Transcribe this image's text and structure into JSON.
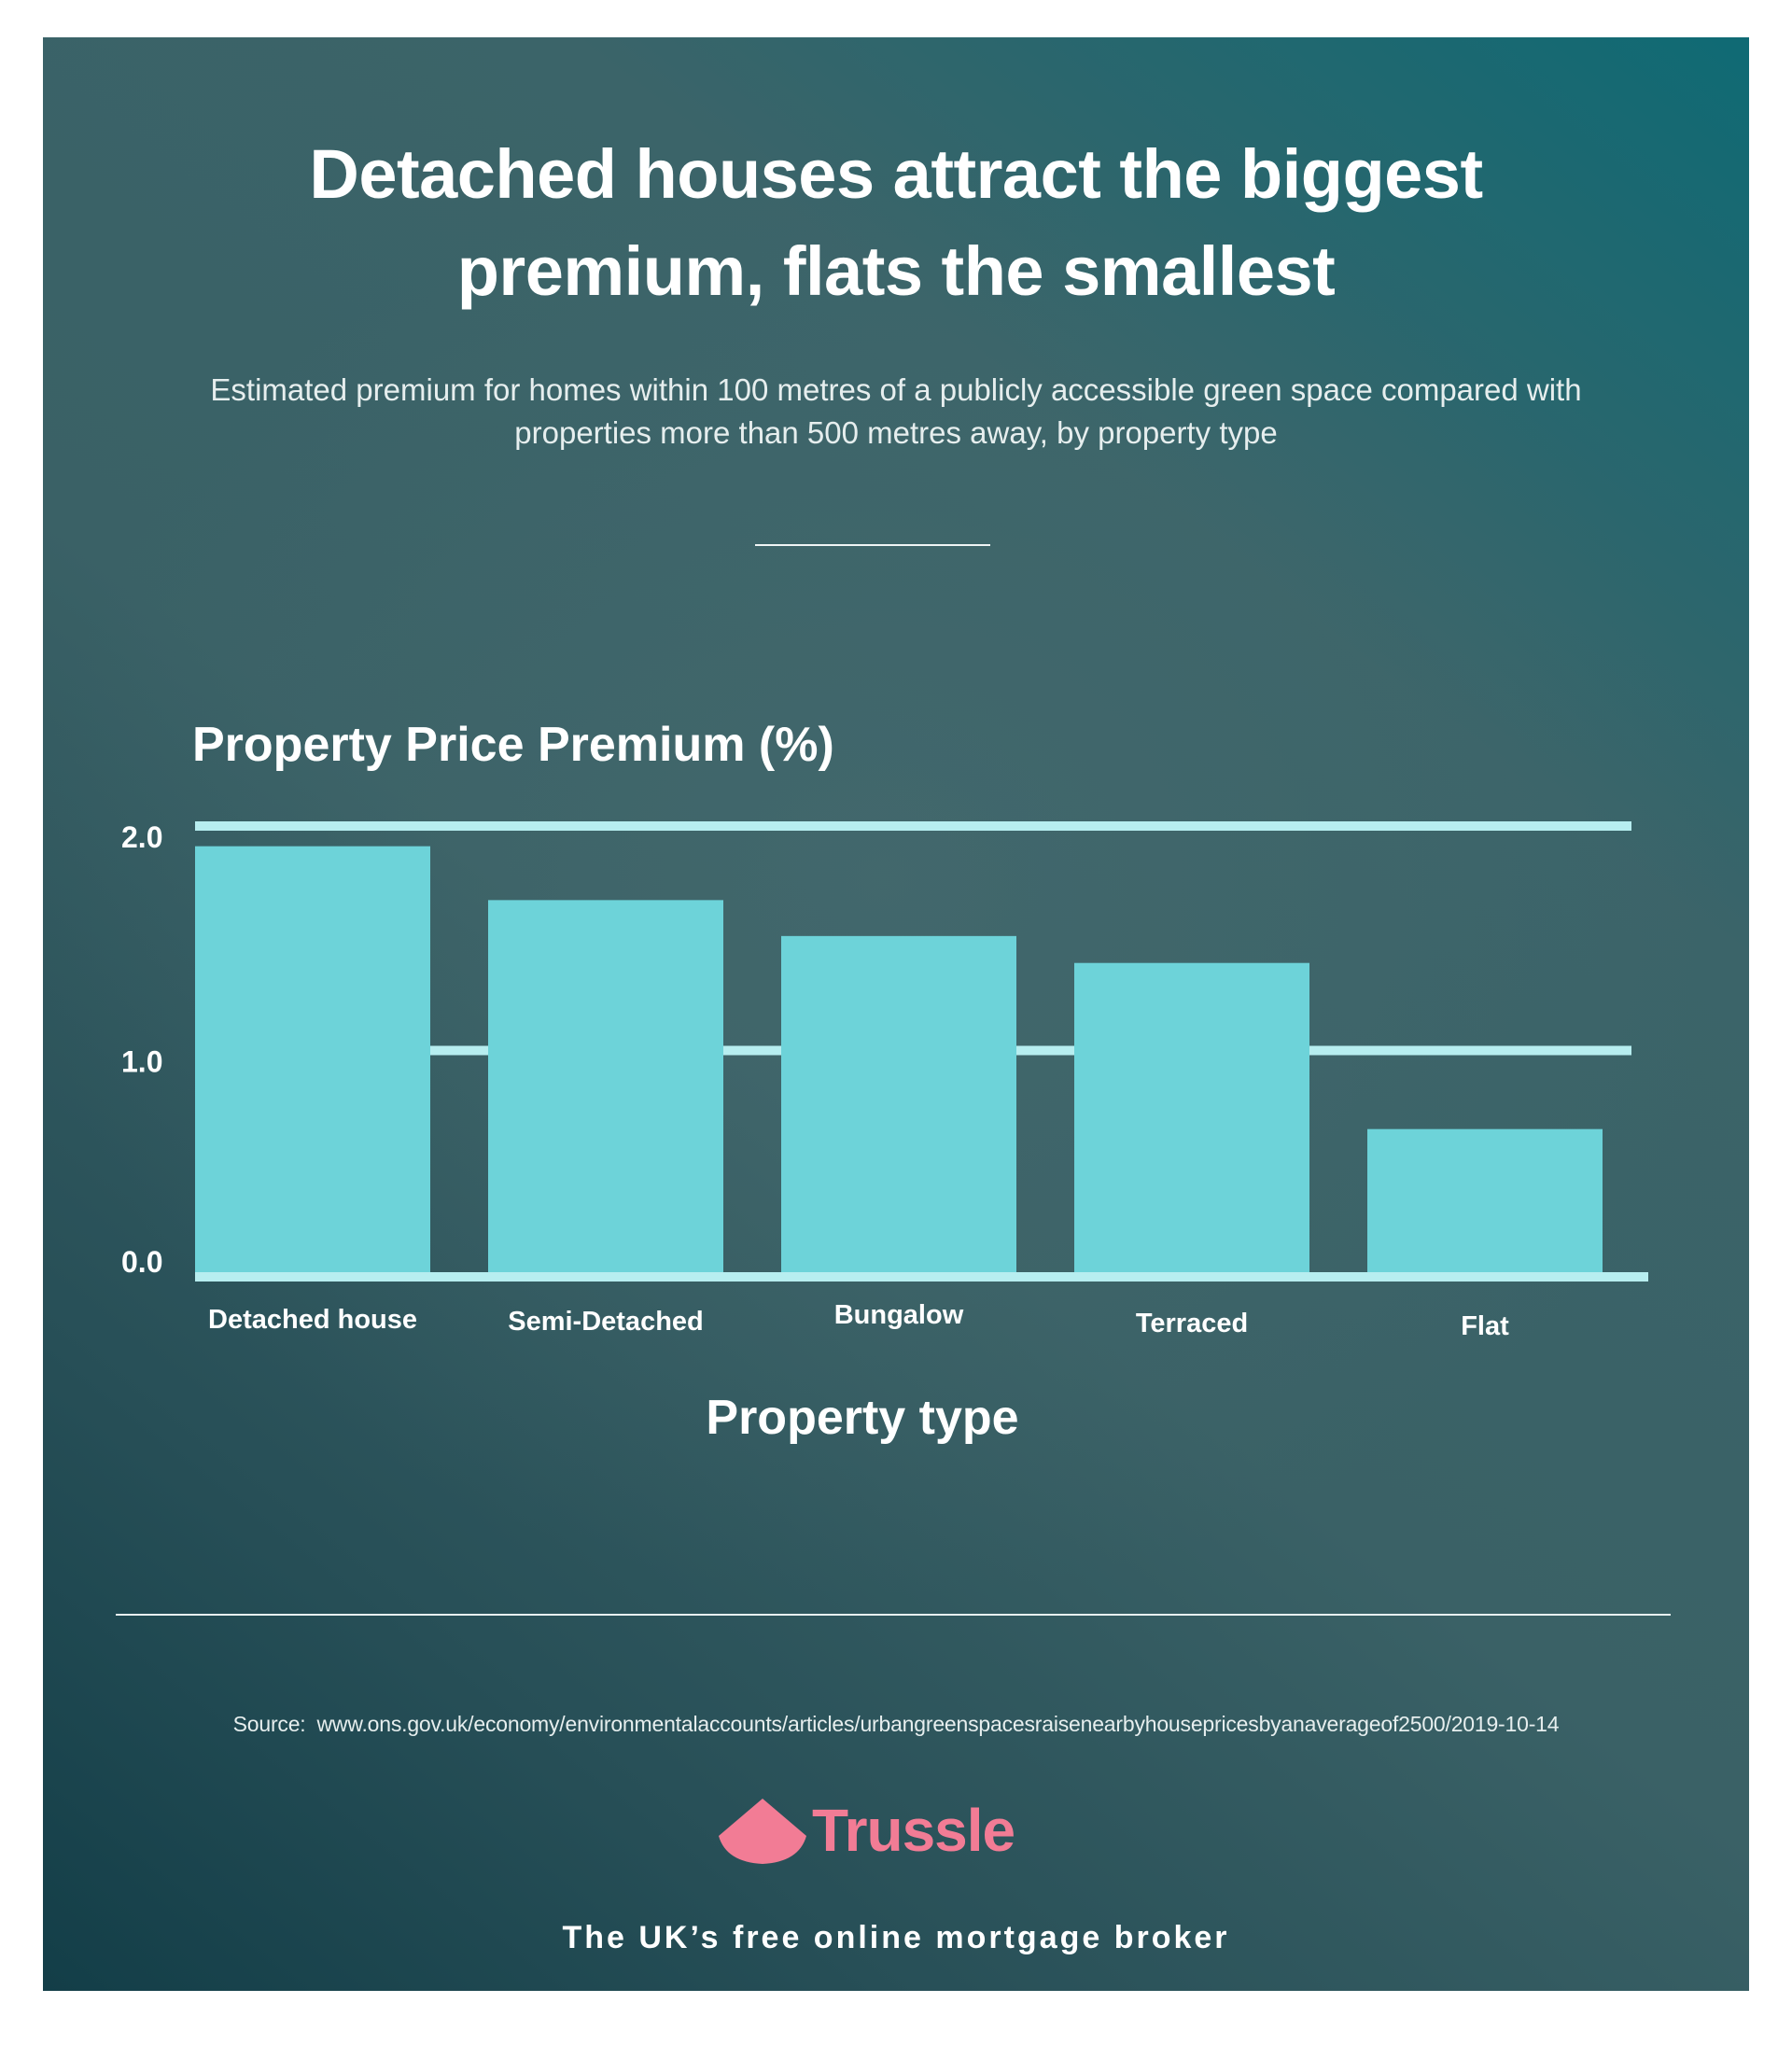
{
  "header": {
    "title_lines": [
      "Detached houses attract the biggest",
      "premium, flats the smallest"
    ],
    "subtitle_lines": [
      "Estimated premium for homes within 100 metres of a publicly accessible green space compared with",
      "properties more than 500 metres away, by property type"
    ]
  },
  "chart_data": {
    "type": "bar",
    "title": "Property Price Premium (%)",
    "xlabel": "Property type",
    "ylabel": "Property Price Premium (%)",
    "categories": [
      "Detached house",
      "Semi-Detached",
      "Bungalow",
      "Terraced",
      "Flat"
    ],
    "values": [
      1.91,
      1.67,
      1.51,
      1.39,
      0.65
    ],
    "ylim": [
      0,
      2.0
    ],
    "yticks": [
      0,
      1,
      2
    ],
    "ytick_labels": [
      "0.0",
      "1.0",
      "2.0"
    ],
    "grid": true,
    "bar_color": "#6dd3d9",
    "grid_color": "#b7eef0"
  },
  "footer": {
    "source_label": "Source:",
    "source_url": "www.ons.gov.uk/economy/environmentalaccounts/articles/urbangreenspacesraisenearbyhousepricesbyanaverageof2500/2019-10-14",
    "brand": "Trussle",
    "tagline": "The UK’s free online mortgage broker",
    "brand_color": "#f27c95",
    "logo_icon": "trussle-roof-icon"
  }
}
